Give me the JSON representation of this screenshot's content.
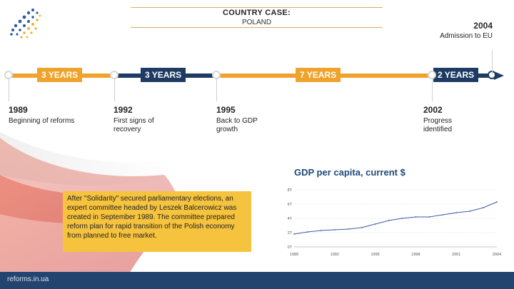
{
  "header": {
    "title": "COUNTRY CASE:",
    "subtitle": "POLAND"
  },
  "milestone_top": {
    "year": "2004",
    "label": "Admission to EU"
  },
  "timeline": {
    "segments": [
      "3 YEARS",
      "3 YEARS",
      "7 YEARS",
      "2 YEARS"
    ],
    "colors": {
      "orange": "#f0a32c",
      "navy": "#1d3b63",
      "grey": "#d7d7d7"
    }
  },
  "events": [
    {
      "year": "1989",
      "label": "Beginning of reforms"
    },
    {
      "year": "1992",
      "label": "First signs of recovery"
    },
    {
      "year": "1995",
      "label": "Back to GDP growth"
    },
    {
      "year": "2002",
      "label": "Progress identified"
    }
  ],
  "info_box": {
    "text": "After \"Solidarity\" secured parliamentary elections, an expert committee headed by Leszek Balcerowicz was created in September 1989. The committee prepared reform plan for rapid transition of the Polish economy from planned to free market."
  },
  "chart_data": {
    "type": "line",
    "title": "GDP per capita, current $",
    "x": [
      1989,
      1990,
      1991,
      1992,
      1993,
      1994,
      1995,
      1996,
      1997,
      1998,
      1999,
      2000,
      2001,
      2002,
      2003,
      2004
    ],
    "x_ticks": [
      "1989",
      "1992",
      "1995",
      "1998",
      "2001",
      "2004"
    ],
    "y_ticks": [
      "0T",
      "2T",
      "4T",
      "6T",
      "8T"
    ],
    "ylim": [
      0,
      8
    ],
    "series": [
      {
        "values": [
          1.8,
          2.1,
          2.3,
          2.4,
          2.5,
          2.7,
          3.2,
          3.7,
          4.0,
          4.2,
          4.2,
          4.5,
          4.8,
          5.0,
          5.5,
          6.3
        ],
        "color": "#3d5ea6"
      }
    ],
    "grid": true
  },
  "footer": {
    "text": "reforms.in.ua"
  }
}
